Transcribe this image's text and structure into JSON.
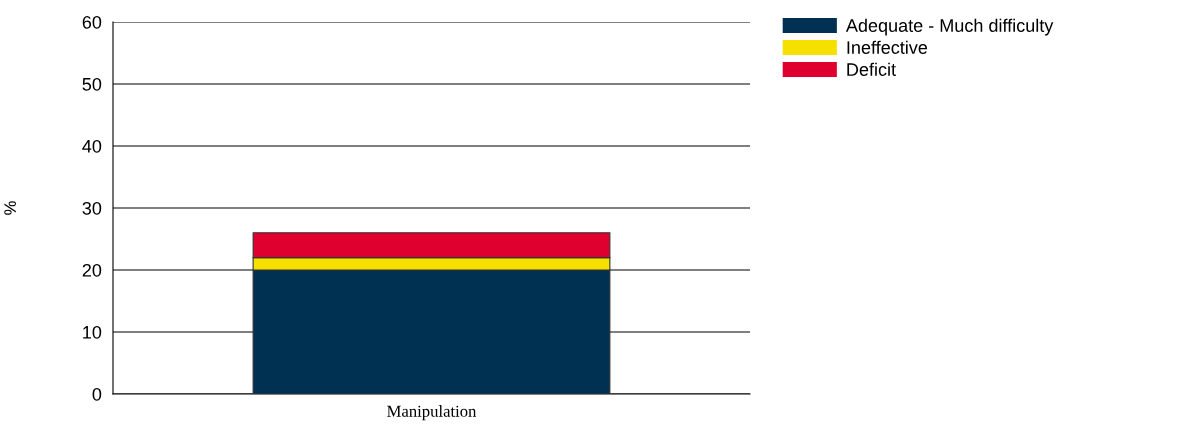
{
  "chart_data": {
    "type": "bar",
    "stacked": true,
    "ylabel": "%",
    "categories": [
      "Manipulation"
    ],
    "series": [
      {
        "name": "Adequate - Much difficulty",
        "color": "#003153",
        "values": [
          20
        ]
      },
      {
        "name": "Ineffective",
        "color": "#f5e000",
        "values": [
          2
        ]
      },
      {
        "name": "Deficit",
        "color": "#e0002f",
        "values": [
          4
        ]
      }
    ],
    "ylim": [
      0,
      60
    ],
    "yticks": [
      0,
      10,
      20,
      30,
      40,
      50,
      60
    ],
    "grid": "y",
    "legend": "top right"
  }
}
